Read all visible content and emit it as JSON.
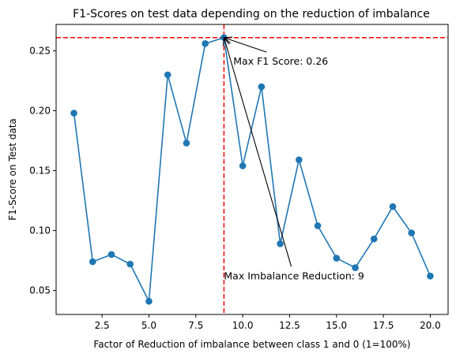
{
  "chart_data": {
    "type": "line",
    "title": "F1-Scores on test data depending on the reduction of imbalance",
    "xlabel": "Factor of Reduction of imbalance between class 1 and 0 (1=100%)",
    "ylabel": "F1-Score on Test data",
    "x": [
      1,
      2,
      3,
      4,
      5,
      6,
      7,
      8,
      9,
      10,
      11,
      12,
      13,
      14,
      15,
      16,
      17,
      18,
      19,
      20
    ],
    "series": [
      {
        "values": [
          0.198,
          0.074,
          0.08,
          0.072,
          0.041,
          0.23,
          0.173,
          0.256,
          0.261,
          0.154,
          0.22,
          0.089,
          0.159,
          0.104,
          0.077,
          0.069,
          0.093,
          0.12,
          0.098,
          0.062
        ],
        "color": "#1f77b4"
      }
    ],
    "xlim": [
      0.05,
      20.95
    ],
    "ylim": [
      0.03,
      0.272
    ],
    "x_ticks": [
      2.5,
      5.0,
      7.5,
      10.0,
      12.5,
      15.0,
      17.5,
      20.0
    ],
    "x_tick_labels": [
      "2.5",
      "5.0",
      "7.5",
      "10.0",
      "12.5",
      "15.0",
      "17.5",
      "20.0"
    ],
    "y_ticks": [
      0.05,
      0.1,
      0.15,
      0.2,
      0.25
    ],
    "y_tick_labels": [
      "0.05",
      "0.10",
      "0.15",
      "0.20",
      "0.25"
    ],
    "grid": false,
    "reference_lines": [
      {
        "orientation": "horizontal",
        "value": 0.261,
        "color": "#ff0000",
        "style": "dashed"
      },
      {
        "orientation": "vertical",
        "value": 9,
        "color": "#ff0000",
        "style": "dashed"
      }
    ],
    "annotations": [
      {
        "text": "Max F1 Score: 0.26",
        "point": [
          9,
          0.261
        ],
        "text_pos": [
          9.5,
          0.241
        ]
      },
      {
        "text": "Max Imbalance Reduction: 9",
        "point": [
          9,
          0.261
        ],
        "text_pos": [
          9,
          0.062
        ]
      }
    ]
  }
}
